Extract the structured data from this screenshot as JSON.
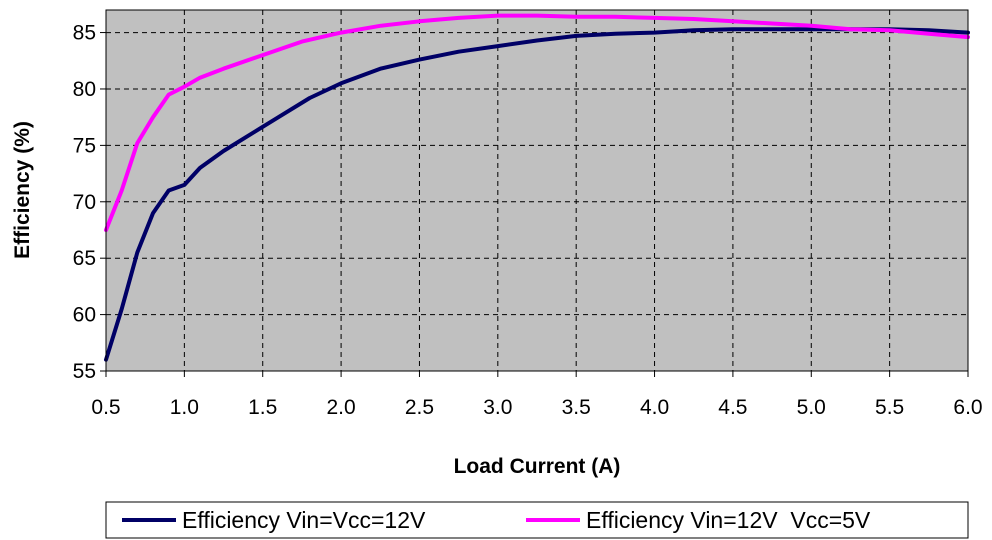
{
  "chart_data": {
    "type": "line",
    "xlabel": "Load Current (A)",
    "ylabel": "Efficiency (%)",
    "xlim": [
      0.5,
      6.0
    ],
    "ylim": [
      55,
      87
    ],
    "x_ticks": [
      "0.5",
      "1.0",
      "1.5",
      "2.0",
      "2.5",
      "3.0",
      "3.5",
      "4.0",
      "4.5",
      "5.0",
      "5.5",
      "6.0"
    ],
    "y_ticks": [
      "55",
      "60",
      "65",
      "70",
      "75",
      "80",
      "85"
    ],
    "grid": true,
    "legend_position": "bottom",
    "plot_background": "#c0c0c0",
    "series": [
      {
        "name": "Efficiency Vin=Vcc=12V",
        "color": "#000066",
        "x": [
          0.5,
          0.6,
          0.7,
          0.8,
          0.9,
          1.0,
          1.1,
          1.25,
          1.4,
          1.6,
          1.8,
          2.0,
          2.25,
          2.5,
          2.75,
          3.0,
          3.25,
          3.5,
          3.75,
          4.0,
          4.25,
          4.5,
          4.75,
          5.0,
          5.25,
          5.5,
          5.75,
          6.0
        ],
        "y": [
          56.0,
          60.5,
          65.5,
          69.0,
          71.0,
          71.5,
          73.0,
          74.5,
          75.8,
          77.5,
          79.2,
          80.5,
          81.8,
          82.6,
          83.3,
          83.8,
          84.3,
          84.7,
          84.9,
          85.0,
          85.2,
          85.3,
          85.3,
          85.3,
          85.3,
          85.3,
          85.2,
          85.0
        ]
      },
      {
        "name": "Efficiency Vin=12V  Vcc=5V",
        "color": "#ff00ff",
        "x": [
          0.5,
          0.6,
          0.7,
          0.8,
          0.9,
          1.0,
          1.1,
          1.25,
          1.5,
          1.75,
          2.0,
          2.25,
          2.5,
          2.75,
          3.0,
          3.25,
          3.5,
          3.75,
          4.0,
          4.25,
          4.5,
          4.75,
          5.0,
          5.25,
          5.5,
          5.75,
          6.0
        ],
        "y": [
          67.5,
          71.0,
          75.2,
          77.5,
          79.5,
          80.2,
          81.0,
          81.8,
          83.0,
          84.2,
          85.0,
          85.6,
          86.0,
          86.3,
          86.5,
          86.5,
          86.4,
          86.4,
          86.3,
          86.2,
          86.0,
          85.8,
          85.6,
          85.3,
          85.2,
          84.9,
          84.6
        ]
      }
    ]
  }
}
